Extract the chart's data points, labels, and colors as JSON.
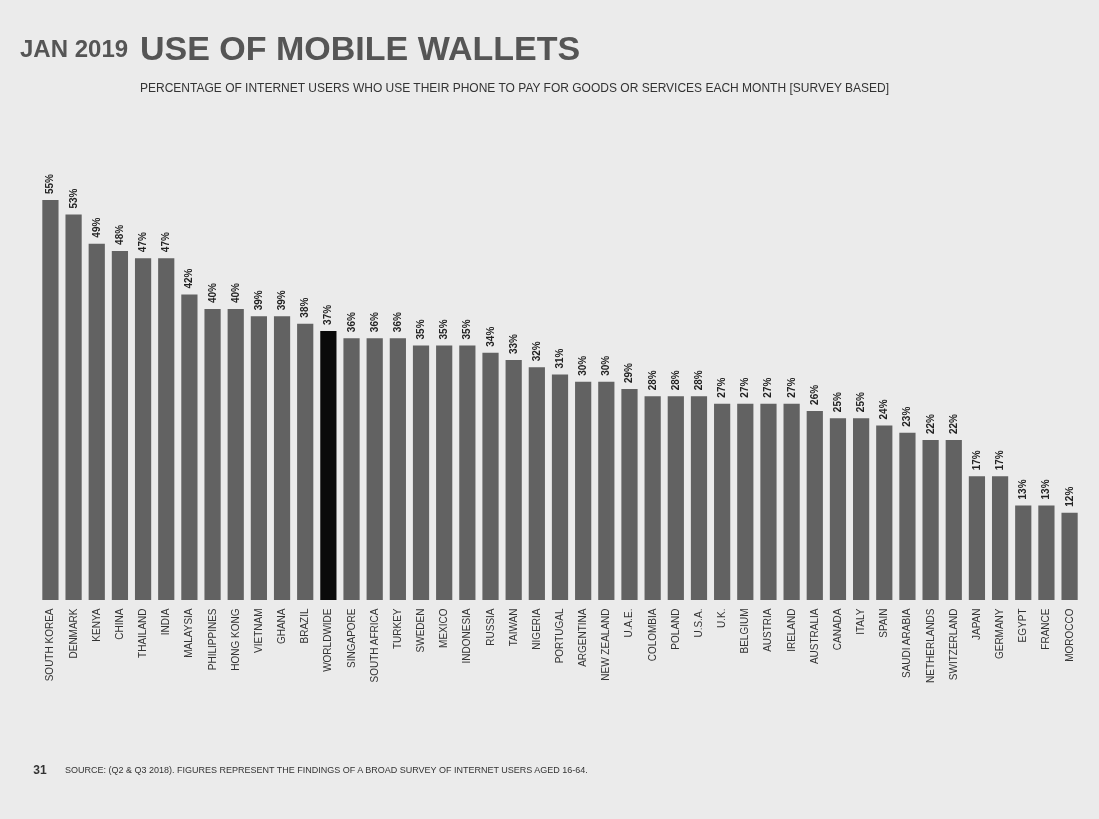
{
  "chart_data": {
    "type": "bar",
    "title": "USE OF MOBILE WALLETS",
    "subtitle": "PERCENTAGE OF INTERNET USERS WHO USE THEIR PHONE TO PAY FOR GOODS OR SERVICES EACH MONTH [SURVEY BASED]",
    "annotations": [
      "JAN 2019",
      "SOURCE: (Q2 & Q3 2018). FIGURES REPRESENT THE FINDINGS OF A BROAD SURVEY OF INTERNET USERS AGED 16-64.",
      "31"
    ],
    "categories": [
      "SOUTH KOREA",
      "DENMARK",
      "KENYA",
      "CHINA",
      "THAILAND",
      "INDIA",
      "MALAYSIA",
      "PHILIPPINES",
      "HONG KONG",
      "VIETNAM",
      "GHANA",
      "BRAZIL",
      "WORLDWIDE",
      "SINGAPORE",
      "SOUTH AFRICA",
      "TURKEY",
      "SWEDEN",
      "MEXICO",
      "INDONESIA",
      "RUSSIA",
      "TAIWAN",
      "NIGERIA",
      "PORTUGAL",
      "ARGENTINA",
      "NEW ZEALAND",
      "U.A.E.",
      "COLOMBIA",
      "POLAND",
      "U.S.A.",
      "U.K.",
      "BELGIUM",
      "AUSTRIA",
      "IRELAND",
      "AUSTRALIA",
      "CANADA",
      "ITALY",
      "SPAIN",
      "SAUDI ARABIA",
      "NETHERLANDS",
      "SWITZERLAND",
      "JAPAN",
      "GERMANY",
      "EGYPT",
      "FRANCE",
      "MOROCCO"
    ],
    "values": [
      55,
      53,
      49,
      48,
      47,
      47,
      42,
      40,
      40,
      39,
      39,
      38,
      37,
      36,
      36,
      36,
      35,
      35,
      35,
      34,
      33,
      32,
      31,
      30,
      30,
      29,
      28,
      28,
      28,
      27,
      27,
      27,
      27,
      26,
      25,
      25,
      24,
      23,
      22,
      22,
      17,
      17,
      13,
      13,
      12
    ],
    "value_labels": [
      "55%",
      "53%",
      "49%",
      "48%",
      "47%",
      "47%",
      "42%",
      "40%",
      "40%",
      "39%",
      "39%",
      "38%",
      "37%",
      "36%",
      "36%",
      "36%",
      "35%",
      "35%",
      "35%",
      "34%",
      "33%",
      "32%",
      "31%",
      "30%",
      "30%",
      "29%",
      "28%",
      "28%",
      "28%",
      "27%",
      "27%",
      "27%",
      "27%",
      "26%",
      "25%",
      "25%",
      "24%",
      "23%",
      "22%",
      "22%",
      "17%",
      "17%",
      "13%",
      "13%",
      "12%"
    ],
    "colors": [
      "#626262",
      "#626262",
      "#626262",
      "#626262",
      "#626262",
      "#626262",
      "#626262",
      "#626262",
      "#626262",
      "#626262",
      "#626262",
      "#626262",
      "#0a0a0a",
      "#626262",
      "#626262",
      "#626262",
      "#626262",
      "#626262",
      "#626262",
      "#626262",
      "#626262",
      "#626262",
      "#626262",
      "#626262",
      "#626262",
      "#626262",
      "#626262",
      "#626262",
      "#626262",
      "#626262",
      "#626262",
      "#626262",
      "#626262",
      "#626262",
      "#626262",
      "#626262",
      "#626262",
      "#626262",
      "#626262",
      "#626262",
      "#626262",
      "#626262",
      "#626262",
      "#626262",
      "#626262"
    ]
  }
}
